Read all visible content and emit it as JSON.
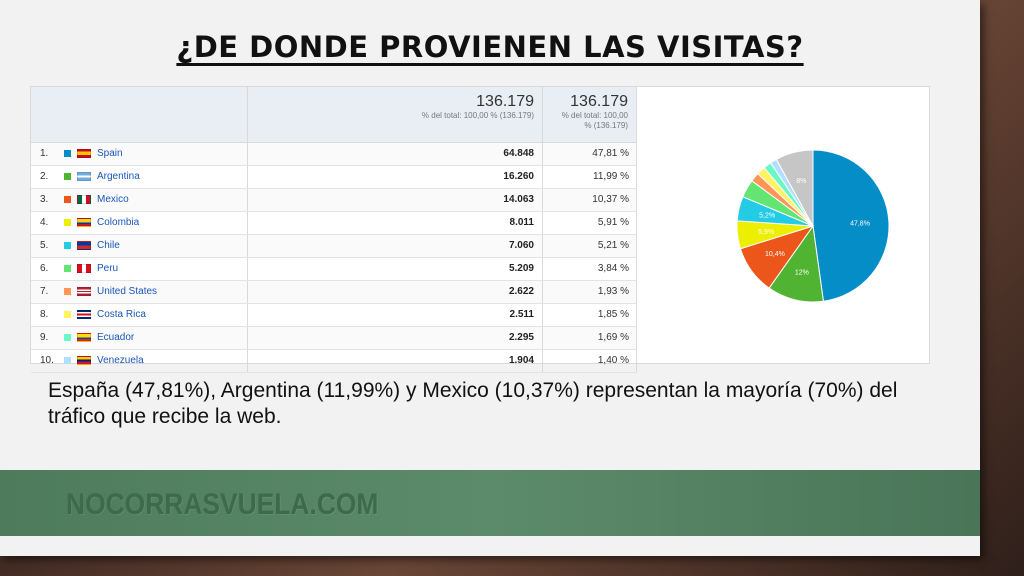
{
  "slide": {
    "title": "¿DE DONDE PROVIENEN LAS VISITAS?",
    "caption": "España (47,81%), Argentina (11,99%) y Mexico (10,37%) representan la mayoría (70%) del tráfico que recibe la web.",
    "footer": "NOCORRASVUELA.COM"
  },
  "report": {
    "sessions_total": "136.179",
    "sessions_subtitle": "% del total: 100,00 % (136.179)",
    "pct_total": "136.179",
    "pct_subtitle": "% del total: 100,00 % (136.179)"
  },
  "rows": [
    {
      "rank": "1.",
      "country": "Spain",
      "sessions": "64.848",
      "percent": "47,81 %",
      "color": "#058dc7"
    },
    {
      "rank": "2.",
      "country": "Argentina",
      "sessions": "16.260",
      "percent": "11,99 %",
      "color": "#50b432"
    },
    {
      "rank": "3.",
      "country": "Mexico",
      "sessions": "14.063",
      "percent": "10,37 %",
      "color": "#ed561b"
    },
    {
      "rank": "4.",
      "country": "Colombia",
      "sessions": "8.011",
      "percent": "5,91 %",
      "color": "#edef00"
    },
    {
      "rank": "5.",
      "country": "Chile",
      "sessions": "7.060",
      "percent": "5,21 %",
      "color": "#24cbe5"
    },
    {
      "rank": "6.",
      "country": "Peru",
      "sessions": "5.209",
      "percent": "3,84 %",
      "color": "#64e572"
    },
    {
      "rank": "7.",
      "country": "United States",
      "sessions": "2.622",
      "percent": "1,93 %",
      "color": "#ff9655"
    },
    {
      "rank": "8.",
      "country": "Costa Rica",
      "sessions": "2.511",
      "percent": "1,85 %",
      "color": "#fff263"
    },
    {
      "rank": "9.",
      "country": "Ecuador",
      "sessions": "2.295",
      "percent": "1,69 %",
      "color": "#6af9c4"
    },
    {
      "rank": "10.",
      "country": "Venezuela",
      "sessions": "1.904",
      "percent": "1,40 %",
      "color": "#b2deff"
    }
  ],
  "chart_data": {
    "type": "pie",
    "categories": [
      "Spain",
      "Argentina",
      "Mexico",
      "Colombia",
      "Chile",
      "Peru",
      "United States",
      "Costa Rica",
      "Ecuador",
      "Venezuela",
      ""
    ],
    "values": [
      47.81,
      11.99,
      10.37,
      5.91,
      5.21,
      3.84,
      1.93,
      1.85,
      1.69,
      1.4,
      8.0
    ],
    "colors": [
      "#058dc7",
      "#50b432",
      "#ed561b",
      "#edef00",
      "#24cbe5",
      "#64e572",
      "#ff9655",
      "#fff263",
      "#6af9c4",
      "#b2deff",
      "#c6c6c6"
    ],
    "data_labels": [
      "47,8%",
      "12%",
      "10,4%",
      "5,9%",
      "5,2%",
      "",
      "",
      "",
      "",
      "",
      "8%"
    ]
  }
}
